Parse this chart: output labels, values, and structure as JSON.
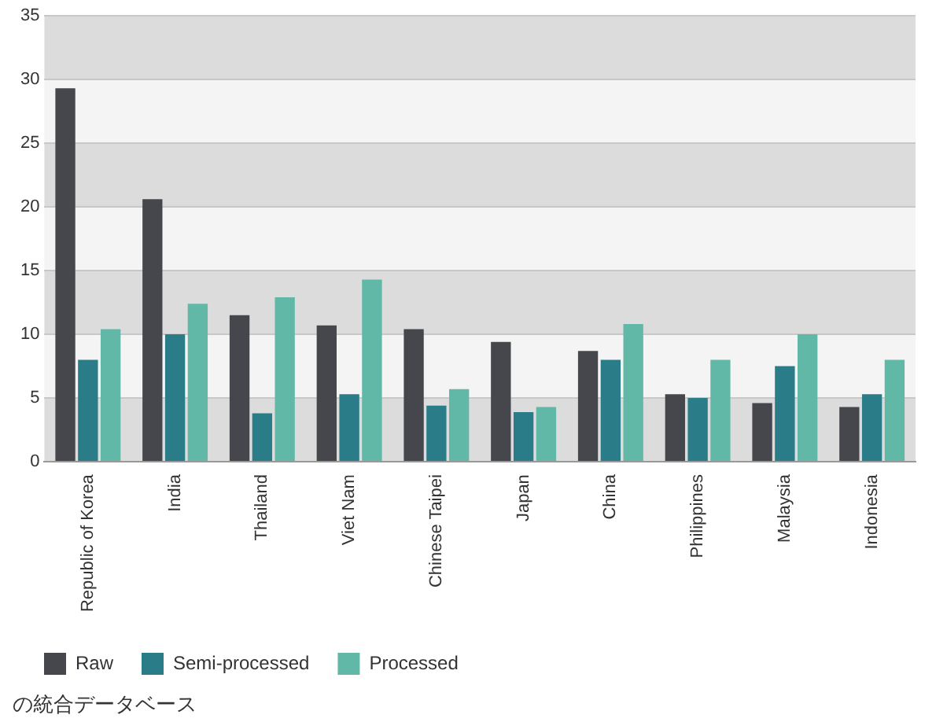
{
  "chart_data": {
    "type": "bar",
    "categories": [
      "Republic of Korea",
      "India",
      "Thailand",
      "Viet Nam",
      "Chinese Taipei",
      "Japan",
      "China",
      "Philippines",
      "Malaysia",
      "Indonesia"
    ],
    "series": [
      {
        "name": "Raw",
        "color": "#45474c",
        "values": [
          29.3,
          20.6,
          11.5,
          10.7,
          10.4,
          9.4,
          8.7,
          5.3,
          4.6,
          4.3
        ]
      },
      {
        "name": "Semi-processed",
        "color": "#2a7c88",
        "values": [
          8.0,
          10.0,
          3.8,
          5.3,
          4.4,
          3.9,
          8.0,
          5.0,
          7.5,
          5.3
        ]
      },
      {
        "name": "Processed",
        "color": "#62b8a6",
        "values": [
          10.4,
          12.4,
          12.9,
          14.3,
          5.7,
          4.3,
          10.8,
          8.0,
          10.0,
          8.0
        ]
      }
    ],
    "ylim": [
      0,
      35
    ],
    "yticks": [
      0,
      5,
      10,
      15,
      20,
      25,
      30,
      35
    ],
    "grid": "y",
    "legend": "bottom left",
    "annotations": [
      "の統合データベース"
    ]
  }
}
